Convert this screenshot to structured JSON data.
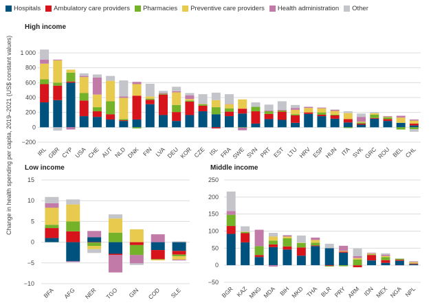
{
  "legend": [
    {
      "key": "hospitals",
      "label": "Hospitals",
      "color": "#00527e"
    },
    {
      "key": "ambulatory",
      "label": "Ambulatory care providers",
      "color": "#d7141b"
    },
    {
      "key": "pharmacies",
      "label": "Pharmacies",
      "color": "#74b22a"
    },
    {
      "key": "preventive",
      "label": "Preventive care providers",
      "color": "#e8cb4e"
    },
    {
      "key": "admin",
      "label": "Health administration",
      "color": "#c27ba9"
    },
    {
      "key": "other",
      "label": "Other",
      "color": "#c4c5ca"
    }
  ],
  "ylabel": "Change in health spending per capita, 2019–2021 (US$ constant values)",
  "chart_data": [
    {
      "type": "bar",
      "stacked": true,
      "title": "High income",
      "ylim": [
        -200,
        1000
      ],
      "yticks": [
        -200,
        0,
        200,
        400,
        600,
        800,
        1000
      ],
      "ytick_labels": [
        "−200",
        "0",
        "200",
        "400",
        "600",
        "800",
        "1 000"
      ],
      "categories": [
        "IRL",
        "GBR",
        "CYP",
        "USA",
        "CHE",
        "AUT",
        "NLD",
        "DNK",
        "FIN",
        "LVA",
        "DEU",
        "KOR",
        "CZE",
        "ISL",
        "FRA",
        "SWE",
        "SVN",
        "PRT",
        "EST",
        "LTU",
        "HRV",
        "ESP",
        "HUN",
        "ITA",
        "SVK",
        "GRC",
        "ROU",
        "BEL",
        "CHL"
      ],
      "series": [
        {
          "name": "hospitals",
          "values": [
            335,
            365,
            600,
            150,
            140,
            105,
            85,
            105,
            310,
            165,
            85,
            165,
            215,
            175,
            150,
            185,
            50,
            110,
            100,
            60,
            180,
            150,
            115,
            65,
            35,
            115,
            85,
            60,
            25
          ]
        },
        {
          "name": "ambulatory",
          "values": [
            245,
            195,
            15,
            210,
            75,
            70,
            10,
            320,
            60,
            275,
            120,
            180,
            75,
            -15,
            60,
            65,
            165,
            70,
            110,
            100,
            20,
            20,
            45,
            45,
            15,
            10,
            25,
            0,
            25
          ]
        },
        {
          "name": "pharmacies",
          "values": [
            65,
            40,
            120,
            100,
            55,
            175,
            15,
            -15,
            15,
            10,
            95,
            15,
            20,
            95,
            45,
            -5,
            60,
            35,
            15,
            15,
            0,
            30,
            10,
            -10,
            15,
            45,
            25,
            -30,
            -25
          ]
        },
        {
          "name": "preventive",
          "values": [
            210,
            300,
            40,
            215,
            170,
            275,
            285,
            155,
            30,
            0,
            170,
            20,
            5,
            95,
            55,
            125,
            0,
            0,
            0,
            60,
            60,
            55,
            50,
            80,
            10,
            20,
            5,
            70,
            40
          ]
        },
        {
          "name": "admin",
          "values": [
            55,
            10,
            -30,
            15,
            230,
            0,
            20,
            30,
            0,
            10,
            15,
            50,
            5,
            0,
            5,
            -35,
            0,
            10,
            10,
            25,
            15,
            10,
            15,
            0,
            65,
            0,
            10,
            25,
            15
          ]
        },
        {
          "name": "other",
          "values": [
            135,
            -45,
            0,
            35,
            40,
            65,
            215,
            0,
            170,
            30,
            60,
            30,
            125,
            100,
            130,
            0,
            60,
            80,
            115,
            40,
            0,
            0,
            5,
            25,
            45,
            15,
            0,
            0,
            -35
          ]
        }
      ]
    },
    {
      "type": "bar",
      "stacked": true,
      "title": "Low income",
      "ylim": [
        -10,
        15
      ],
      "yticks": [
        -10,
        -5,
        0,
        5,
        10,
        15
      ],
      "ytick_labels": [
        "−10",
        "−5",
        "0",
        "5",
        "10",
        "15"
      ],
      "categories": [
        "BFA",
        "AFG",
        "NER",
        "TGO",
        "GIN",
        "COD",
        "SLE"
      ],
      "series": [
        {
          "name": "hospitals",
          "values": [
            1.0,
            -4.6,
            1.2,
            -2.8,
            0,
            -1.9,
            -2.1
          ]
        },
        {
          "name": "ambulatory",
          "values": [
            2.4,
            2.6,
            -0.1,
            -0.3,
            -0.7,
            -2.2,
            -0.9
          ]
        },
        {
          "name": "pharmacies",
          "values": [
            0.8,
            2.4,
            -0.8,
            2.3,
            -2.4,
            -0.1,
            -0.4
          ]
        },
        {
          "name": "preventive",
          "values": [
            4.1,
            4.1,
            -0.8,
            3.4,
            3.1,
            -0.2,
            -0.8
          ]
        },
        {
          "name": "admin",
          "values": [
            1.1,
            -0.2,
            1.5,
            -4.2,
            -2.0,
            1.9,
            -0.2
          ]
        },
        {
          "name": "other",
          "values": [
            1.5,
            1.2,
            -0.9,
            1.0,
            -0.4,
            0,
            0.2
          ]
        }
      ]
    },
    {
      "type": "bar",
      "stacked": true,
      "title": "Middle income",
      "ylim": [
        -50,
        250
      ],
      "yticks": [
        -50,
        0,
        50,
        100,
        150,
        200,
        250
      ],
      "ytick_labels": [
        "−50",
        "0",
        "50",
        "100",
        "150",
        "200",
        "250"
      ],
      "categories": [
        "BGR",
        "KAZ",
        "MNG",
        "MDA",
        "BIH",
        "MKD",
        "THA",
        "BLR",
        "PRY",
        "ARM",
        "IDN",
        "MEX",
        "NGA",
        "NPL"
      ],
      "series": [
        {
          "name": "hospitals",
          "values": [
            92,
            67,
            24,
            53,
            46,
            28,
            56,
            50,
            37,
            0,
            14,
            7,
            13,
            3
          ]
        },
        {
          "name": "ambulatory",
          "values": [
            23,
            27,
            6,
            8,
            9,
            24,
            2,
            -2,
            3,
            -6,
            16,
            8,
            3,
            2
          ]
        },
        {
          "name": "pharmacies",
          "values": [
            33,
            3,
            26,
            11,
            24,
            13,
            8,
            -2,
            -3,
            17,
            2,
            9,
            3,
            1
          ]
        },
        {
          "name": "preventive",
          "values": [
            0,
            1,
            0,
            12,
            5,
            1,
            8,
            0,
            2,
            4,
            2,
            3,
            0,
            3
          ]
        },
        {
          "name": "admin",
          "values": [
            11,
            0,
            48,
            -4,
            3,
            0,
            7,
            0,
            15,
            6,
            2,
            4,
            -1,
            2
          ]
        },
        {
          "name": "other",
          "values": [
            57,
            16,
            0,
            11,
            2,
            21,
            0,
            13,
            0,
            22,
            1,
            4,
            1,
            1
          ]
        }
      ]
    }
  ]
}
